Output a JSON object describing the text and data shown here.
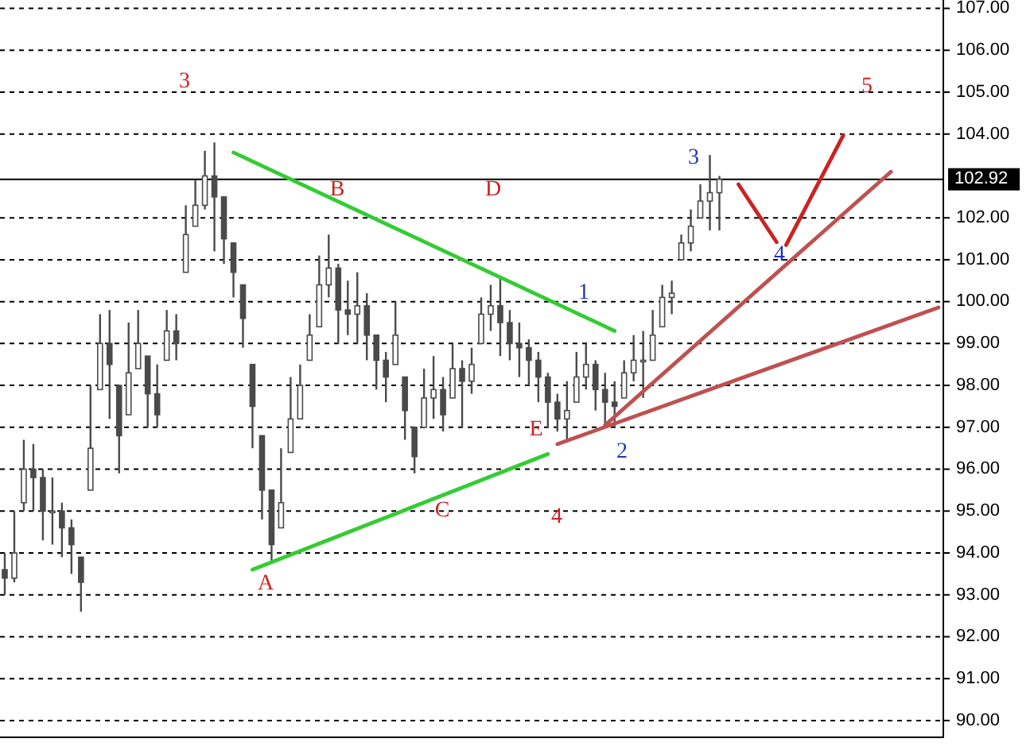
{
  "chart_data": {
    "type": "candlestick",
    "ylim": [
      89.6,
      107.2
    ],
    "yticks": [
      {
        "value": 90,
        "label": "90.00"
      },
      {
        "value": 91,
        "label": "91.00"
      },
      {
        "value": 92,
        "label": "92.00"
      },
      {
        "value": 93,
        "label": "93.00"
      },
      {
        "value": 94,
        "label": "94.00"
      },
      {
        "value": 95,
        "label": "95.00"
      },
      {
        "value": 96,
        "label": "96.00"
      },
      {
        "value": 97,
        "label": "97.00"
      },
      {
        "value": 98,
        "label": "98.00"
      },
      {
        "value": 99,
        "label": "99.00"
      },
      {
        "value": 100,
        "label": "100.00"
      },
      {
        "value": 101,
        "label": "101.00"
      },
      {
        "value": 102,
        "label": "102.00"
      },
      {
        "value": 104,
        "label": "104.00"
      },
      {
        "value": 105,
        "label": "105.00"
      },
      {
        "value": 106,
        "label": "106.00"
      },
      {
        "value": 107,
        "label": "107.00"
      }
    ],
    "grid": "y",
    "tick_labels": "y",
    "line_style": "solid",
    "ref_lines": [
      {
        "axis": "y",
        "value": 102.92,
        "label": "102.92",
        "color": "#000000"
      }
    ],
    "categories": [
      null,
      null,
      null,
      null,
      null,
      null,
      null,
      null,
      null,
      null,
      null,
      null,
      null,
      null,
      null,
      null,
      null,
      null,
      null,
      null,
      null,
      null,
      null,
      null,
      null,
      null,
      null,
      null,
      null,
      null,
      null,
      null,
      null,
      null,
      null,
      null,
      null,
      null,
      null,
      null,
      null,
      null,
      null,
      null,
      null,
      null,
      null,
      null,
      null,
      null,
      null,
      null,
      null,
      null,
      null,
      null,
      null,
      null,
      null,
      null,
      null,
      null,
      null,
      null,
      null,
      null,
      null,
      null,
      null,
      null,
      null,
      null,
      null,
      null,
      null,
      null,
      null,
      null,
      null,
      null,
      null,
      null,
      null,
      null,
      null,
      null,
      null,
      null,
      null,
      null,
      null,
      null,
      null,
      null,
      null,
      null,
      null,
      null,
      null
    ],
    "color": "#4a4a4a",
    "ohlc": [
      [
        93.6,
        94.0,
        93.0,
        93.4
      ],
      [
        93.4,
        95.0,
        93.3,
        94.0
      ],
      [
        95.2,
        96.7,
        95.0,
        96.0
      ],
      [
        96.0,
        96.6,
        95.0,
        95.8
      ],
      [
        95.8,
        96.0,
        94.3,
        95.0
      ],
      [
        95.0,
        95.8,
        94.2,
        95.0
      ],
      [
        95.0,
        95.2,
        93.9,
        94.6
      ],
      [
        94.6,
        94.8,
        93.5,
        94.2
      ],
      [
        93.9,
        93.9,
        92.6,
        93.3
      ],
      [
        95.5,
        98.0,
        95.5,
        96.5
      ],
      [
        97.9,
        99.7,
        97.9,
        99.0
      ],
      [
        99.0,
        99.8,
        97.2,
        98.5
      ],
      [
        98.0,
        98.0,
        95.9,
        96.8
      ],
      [
        97.3,
        99.5,
        97.3,
        98.3
      ],
      [
        98.4,
        99.8,
        98.4,
        99.0
      ],
      [
        98.7,
        98.7,
        97.0,
        97.8
      ],
      [
        97.8,
        98.5,
        97.0,
        97.3
      ],
      [
        98.6,
        99.8,
        98.6,
        99.3
      ],
      [
        99.3,
        99.7,
        98.6,
        99.0
      ],
      [
        100.7,
        102.3,
        100.7,
        101.6
      ],
      [
        101.8,
        102.9,
        101.8,
        102.3
      ],
      [
        102.3,
        103.6,
        102.2,
        103.0
      ],
      [
        103.0,
        103.8,
        101.2,
        102.5
      ],
      [
        102.5,
        102.5,
        100.9,
        101.5
      ],
      [
        101.4,
        101.4,
        100.1,
        100.7
      ],
      [
        100.4,
        100.4,
        98.9,
        99.6
      ],
      [
        98.5,
        98.5,
        96.5,
        97.5
      ],
      [
        96.8,
        96.8,
        94.8,
        95.5
      ],
      [
        95.5,
        95.5,
        93.8,
        94.2
      ],
      [
        94.6,
        96.5,
        94.6,
        95.2
      ],
      [
        96.4,
        98.2,
        96.4,
        97.2
      ],
      [
        97.2,
        98.5,
        97.2,
        98.0
      ],
      [
        98.6,
        99.7,
        98.6,
        99.2
      ],
      [
        99.4,
        101.1,
        99.4,
        100.4
      ],
      [
        100.4,
        101.6,
        100.1,
        100.8
      ],
      [
        100.8,
        100.9,
        99.0,
        99.8
      ],
      [
        99.8,
        100.5,
        99.2,
        99.7
      ],
      [
        99.7,
        100.7,
        99.0,
        99.9
      ],
      [
        99.9,
        100.2,
        98.6,
        99.2
      ],
      [
        99.2,
        99.2,
        97.9,
        98.6
      ],
      [
        98.6,
        98.8,
        97.6,
        98.2
      ],
      [
        98.5,
        100.0,
        98.5,
        99.2
      ],
      [
        98.2,
        98.2,
        96.7,
        97.4
      ],
      [
        97.0,
        97.0,
        95.9,
        96.3
      ],
      [
        97.0,
        98.4,
        97.0,
        97.7
      ],
      [
        97.7,
        98.7,
        97.2,
        97.9
      ],
      [
        97.9,
        98.2,
        96.9,
        97.3
      ],
      [
        97.7,
        99.0,
        97.7,
        98.4
      ],
      [
        98.4,
        98.6,
        97.0,
        98.1
      ],
      [
        98.1,
        98.9,
        97.8,
        98.5
      ],
      [
        99.0,
        100.1,
        99.0,
        99.7
      ],
      [
        99.7,
        100.4,
        99.3,
        99.9
      ],
      [
        99.9,
        100.6,
        98.7,
        99.5
      ],
      [
        99.5,
        99.8,
        98.6,
        99.0
      ],
      [
        99.0,
        99.5,
        98.2,
        98.9
      ],
      [
        98.9,
        99.1,
        98.0,
        98.6
      ],
      [
        98.6,
        98.8,
        97.6,
        98.2
      ],
      [
        98.2,
        98.3,
        97.0,
        97.6
      ],
      [
        97.6,
        97.8,
        96.9,
        97.2
      ],
      [
        97.2,
        98.1,
        96.7,
        97.4
      ],
      [
        97.6,
        98.8,
        97.6,
        98.2
      ],
      [
        98.2,
        99.0,
        97.9,
        98.5
      ],
      [
        98.5,
        98.6,
        97.4,
        97.9
      ],
      [
        97.9,
        98.3,
        97.0,
        97.6
      ],
      [
        97.6,
        98.1,
        97.0,
        97.5
      ],
      [
        97.7,
        98.6,
        97.7,
        98.3
      ],
      [
        98.3,
        99.2,
        98.1,
        98.6
      ],
      [
        98.6,
        99.3,
        97.7,
        98.6
      ],
      [
        98.6,
        99.8,
        98.6,
        99.2
      ],
      [
        99.4,
        100.4,
        99.4,
        100.1
      ],
      [
        100.1,
        100.5,
        99.7,
        100.2
      ],
      [
        101.0,
        101.6,
        101.0,
        101.4
      ],
      [
        101.4,
        102.2,
        101.2,
        101.8
      ],
      [
        102.0,
        102.8,
        102.0,
        102.4
      ],
      [
        102.4,
        103.5,
        101.7,
        102.6
      ],
      [
        102.6,
        103.0,
        101.7,
        102.92
      ],
      null,
      null,
      null,
      null,
      null,
      null,
      null,
      null,
      null,
      null,
      null,
      null,
      null,
      null,
      null,
      null,
      null,
      null,
      null,
      null,
      null,
      null,
      null
    ],
    "series": [
      {
        "type": "line",
        "color": "#33cc33",
        "values": [
          null,
          null,
          null,
          null,
          null,
          null,
          null,
          null,
          null,
          null,
          null,
          null,
          null,
          null,
          null,
          null,
          null,
          null,
          null,
          null,
          null,
          null,
          null,
          null,
          103.56,
          null,
          null,
          null,
          null,
          null,
          null,
          null,
          null,
          null,
          null,
          null,
          null,
          null,
          null,
          null,
          null,
          null,
          null,
          null,
          null,
          null,
          null,
          null,
          null,
          null,
          null,
          null,
          null,
          null,
          null,
          null,
          null,
          null,
          null,
          null,
          null,
          null,
          null,
          null,
          99.3,
          null,
          null,
          null,
          null,
          null,
          null,
          null,
          null,
          null,
          null,
          null,
          null,
          null,
          null,
          null,
          null,
          null,
          null,
          null,
          null,
          null,
          null,
          null,
          null,
          null,
          null,
          null,
          null,
          null,
          null,
          null,
          null,
          null,
          null
        ]
      },
      {
        "type": "line",
        "color": "#33cc33",
        "values": [
          null,
          null,
          null,
          null,
          null,
          null,
          null,
          null,
          null,
          null,
          null,
          null,
          null,
          null,
          null,
          null,
          null,
          null,
          null,
          null,
          null,
          null,
          null,
          null,
          null,
          null,
          93.6,
          null,
          null,
          null,
          null,
          null,
          null,
          null,
          null,
          null,
          null,
          null,
          null,
          null,
          null,
          null,
          null,
          null,
          null,
          null,
          null,
          null,
          null,
          null,
          null,
          null,
          null,
          null,
          null,
          null,
          null,
          96.36,
          null,
          null,
          null,
          null,
          null,
          null,
          null,
          null,
          null,
          null,
          null,
          null,
          null,
          null,
          null,
          null,
          null,
          null,
          null,
          null,
          null,
          null,
          null,
          null,
          null,
          null,
          null,
          null,
          null,
          null,
          null,
          null,
          null,
          null,
          null,
          null,
          null,
          null,
          null,
          null,
          null
        ]
      },
      {
        "type": "line",
        "color": "#c05050",
        "values": [
          null,
          null,
          null,
          null,
          null,
          null,
          null,
          null,
          null,
          null,
          null,
          null,
          null,
          null,
          null,
          null,
          null,
          null,
          null,
          null,
          null,
          null,
          null,
          null,
          null,
          null,
          null,
          null,
          null,
          null,
          null,
          null,
          null,
          null,
          null,
          null,
          null,
          null,
          null,
          null,
          null,
          null,
          null,
          null,
          null,
          null,
          null,
          null,
          null,
          null,
          null,
          null,
          null,
          null,
          null,
          null,
          null,
          null,
          96.6,
          null,
          null,
          null,
          null,
          null,
          null,
          null,
          null,
          null,
          null,
          null,
          null,
          null,
          null,
          null,
          null,
          null,
          null,
          null,
          null,
          null,
          null,
          null,
          null,
          null,
          null,
          null,
          null,
          null,
          null,
          null,
          null,
          null,
          null,
          null,
          null,
          null,
          null,
          null,
          99.86
        ]
      },
      {
        "type": "line",
        "color": "#c05050",
        "values": [
          null,
          null,
          null,
          null,
          null,
          null,
          null,
          null,
          null,
          null,
          null,
          null,
          null,
          null,
          null,
          null,
          null,
          null,
          null,
          null,
          null,
          null,
          null,
          null,
          null,
          null,
          null,
          null,
          null,
          null,
          null,
          null,
          null,
          null,
          null,
          null,
          null,
          null,
          null,
          null,
          null,
          null,
          null,
          null,
          null,
          null,
          null,
          null,
          null,
          null,
          null,
          null,
          null,
          null,
          null,
          null,
          null,
          null,
          null,
          null,
          null,
          null,
          null,
          97.05,
          null,
          null,
          null,
          null,
          null,
          null,
          null,
          null,
          null,
          null,
          null,
          null,
          null,
          null,
          null,
          null,
          null,
          null,
          null,
          null,
          null,
          null,
          null,
          null,
          null,
          null,
          null,
          null,
          null,
          103.1,
          null,
          null,
          null,
          null,
          null
        ]
      },
      {
        "type": "line",
        "color": "#cc2222",
        "values": [
          null,
          null,
          null,
          null,
          null,
          null,
          null,
          null,
          null,
          null,
          null,
          null,
          null,
          null,
          null,
          null,
          null,
          null,
          null,
          null,
          null,
          null,
          null,
          null,
          null,
          null,
          null,
          null,
          null,
          null,
          null,
          null,
          null,
          null,
          null,
          null,
          null,
          null,
          null,
          null,
          null,
          null,
          null,
          null,
          null,
          null,
          null,
          null,
          null,
          null,
          null,
          null,
          null,
          null,
          null,
          null,
          null,
          null,
          null,
          null,
          null,
          null,
          null,
          null,
          null,
          null,
          null,
          null,
          null,
          null,
          null,
          null,
          null,
          null,
          null,
          null,
          null,
          102.8,
          null,
          null,
          null,
          101.42,
          null,
          null,
          null,
          null,
          null,
          null,
          null,
          null,
          null,
          null,
          null,
          null,
          null,
          null,
          null,
          null,
          null
        ]
      },
      {
        "type": "line",
        "color": "#cc2222",
        "values": [
          null,
          null,
          null,
          null,
          null,
          null,
          null,
          null,
          null,
          null,
          null,
          null,
          null,
          null,
          null,
          null,
          null,
          null,
          null,
          null,
          null,
          null,
          null,
          null,
          null,
          null,
          null,
          null,
          null,
          null,
          null,
          null,
          null,
          null,
          null,
          null,
          null,
          null,
          null,
          null,
          null,
          null,
          null,
          null,
          null,
          null,
          null,
          null,
          null,
          null,
          null,
          null,
          null,
          null,
          null,
          null,
          null,
          null,
          null,
          null,
          null,
          null,
          null,
          null,
          null,
          null,
          null,
          null,
          null,
          null,
          null,
          null,
          null,
          null,
          null,
          null,
          null,
          null,
          null,
          null,
          null,
          null,
          101.35,
          null,
          null,
          null,
          null,
          null,
          103.97,
          null,
          null,
          null,
          null,
          null,
          null,
          null,
          null,
          null,
          null
        ]
      }
    ],
    "annotations": [
      "3",
      "B",
      "D",
      "1",
      "E",
      "2",
      "C",
      "4",
      "A",
      "3",
      "4",
      "5"
    ]
  }
}
